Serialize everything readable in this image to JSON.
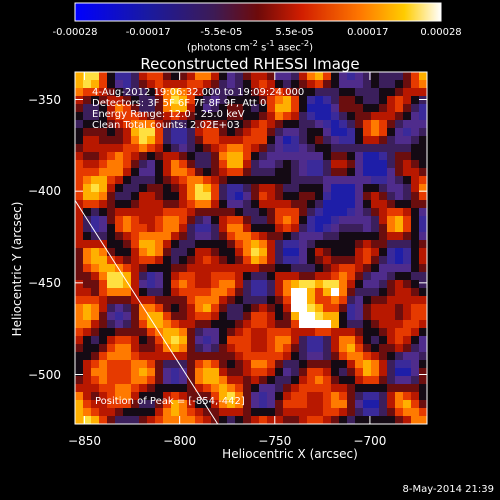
{
  "colorbar": {
    "ticks": [
      "-0.00028",
      "-0.00017",
      "-5.5e-05",
      "5.5e-05",
      "0.00017",
      "0.00028"
    ],
    "units_html": "(photons cm<sup>-2</sup> s<sup>-1</sup> asec<sup>-2</sup>)",
    "range": [
      -0.00028,
      0.00028
    ]
  },
  "title": "Reconstructed RHESSI Image",
  "info_lines": [
    "4-Aug-2012 19:06:32.000 to 19:09:24.000",
    "Detectors: 3F 5F 6F 7F 8F 9F, Att 0",
    "Energy Range: 12.0 - 25.0 keV",
    "Clean     Total counts: 2.02E+03"
  ],
  "peak_label": "Position of Peak = [-854,-442]",
  "footer_date": "8-May-2014 21:39",
  "chart_data": {
    "type": "heatmap",
    "title": "Reconstructed RHESSI Image",
    "xlabel": "Heliocentric X (arcsec)",
    "ylabel": "Heliocentric Y (arcsec)",
    "xlim": [
      -855,
      -670
    ],
    "ylim": [
      -527,
      -335
    ],
    "xticks": [
      -850,
      -800,
      -750,
      -700
    ],
    "yticks": [
      -350,
      -400,
      -450,
      -500
    ],
    "peak": [
      -854,
      -442
    ],
    "limb_line": [
      [
        -855,
        -405
      ],
      [
        -780,
        -527
      ]
    ],
    "color_range": [
      -0.00028,
      0.00028
    ]
  },
  "colors": {
    "background": "#000000",
    "axes": "#ffffff",
    "colormap": [
      "#0000ff",
      "#2a2aa0",
      "#5a2b8a",
      "#8c1a1a",
      "#e03000",
      "#ff8c00",
      "#ffd000",
      "#ffffff"
    ]
  }
}
